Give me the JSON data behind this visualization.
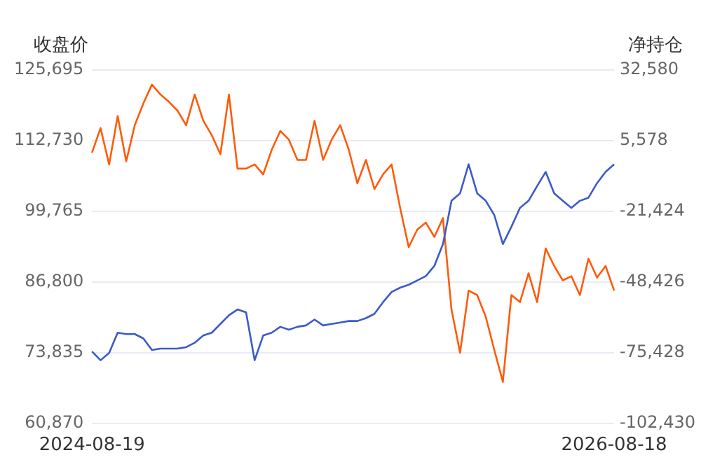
{
  "chart_data": {
    "type": "line",
    "ylabel": "收盘价",
    "y2label": "净持仓",
    "categories": [
      "2024-08-19",
      null,
      null,
      null,
      null,
      null,
      null,
      null,
      null,
      null,
      null,
      null,
      null,
      null,
      null,
      null,
      null,
      null,
      null,
      null,
      null,
      null,
      null,
      null,
      null,
      null,
      null,
      null,
      null,
      null,
      null,
      null,
      null,
      null,
      null,
      null,
      null,
      null,
      null,
      null,
      null,
      null,
      null,
      null,
      null,
      null,
      null,
      null,
      null,
      null,
      null,
      null,
      null,
      null,
      null,
      null,
      null,
      null,
      null,
      null,
      null,
      "2026-08-18"
    ],
    "series": [
      {
        "color": "#3b5bc8",
        "values": [
          74050,
          72450,
          73790,
          77510,
          77250,
          77250,
          76450,
          74320,
          74590,
          74590,
          74590,
          74850,
          75650,
          76980,
          77510,
          79110,
          80710,
          81770,
          81240,
          72450,
          76980,
          77510,
          78580,
          78050,
          78580,
          78840,
          79910,
          78840,
          79110,
          79370,
          79640,
          79640,
          80170,
          80970,
          83100,
          84970,
          85760,
          86300,
          87100,
          87900,
          89760,
          93760,
          101700,
          103070,
          108400,
          103070,
          101700,
          99080,
          93760,
          96950,
          100400,
          101700,
          104400,
          107000,
          103070,
          101700,
          100400,
          101700,
          102270,
          104930,
          107000,
          108400
        ]
      },
      {
        "color": "#ff5a0a",
        "axis": "y2",
        "values": [
          1000,
          10400,
          -3500,
          15000,
          -2300,
          11500,
          19800,
          27000,
          23200,
          20400,
          17000,
          11500,
          23200,
          13200,
          7600,
          400,
          23200,
          -5100,
          -5100,
          -3500,
          -7300,
          2100,
          9300,
          6000,
          -1800,
          -1800,
          13200,
          -1800,
          6000,
          11500,
          2100,
          -10700,
          -1800,
          -12900,
          -7300,
          -3500,
          -20100,
          -35100,
          -28400,
          -25700,
          -31200,
          -24000,
          -58900,
          -75500,
          -51700,
          -53400,
          -61700,
          -74400,
          -86600,
          -53400,
          -56100,
          -45100,
          -56100,
          -35600,
          -42300,
          -47800,
          -46200,
          -53400,
          -39500,
          -46700,
          -42300,
          -51700
        ]
      }
    ],
    "ylim": [
      60870,
      125695
    ],
    "yticks": [
      {
        "value": 60870,
        "label": "60,870"
      },
      {
        "value": 73835,
        "label": "73,835"
      },
      {
        "value": 86800,
        "label": "86,800"
      },
      {
        "value": 99765,
        "label": "99,765"
      },
      {
        "value": 112730,
        "label": "112,730"
      },
      {
        "value": 125695,
        "label": "125,695"
      }
    ],
    "y2lim": [
      -102430,
      32580
    ],
    "y2ticks": [
      {
        "value": -102430,
        "label": "-102,430"
      },
      {
        "value": -75428,
        "label": "-75,428"
      },
      {
        "value": -48426,
        "label": "-48,426"
      },
      {
        "value": -21424,
        "label": "-21,424"
      },
      {
        "value": 5578,
        "label": "5,578"
      },
      {
        "value": 32580,
        "label": "32,580"
      }
    ],
    "grid": "y",
    "legend": false,
    "marker": "none",
    "line_style": "solid"
  }
}
